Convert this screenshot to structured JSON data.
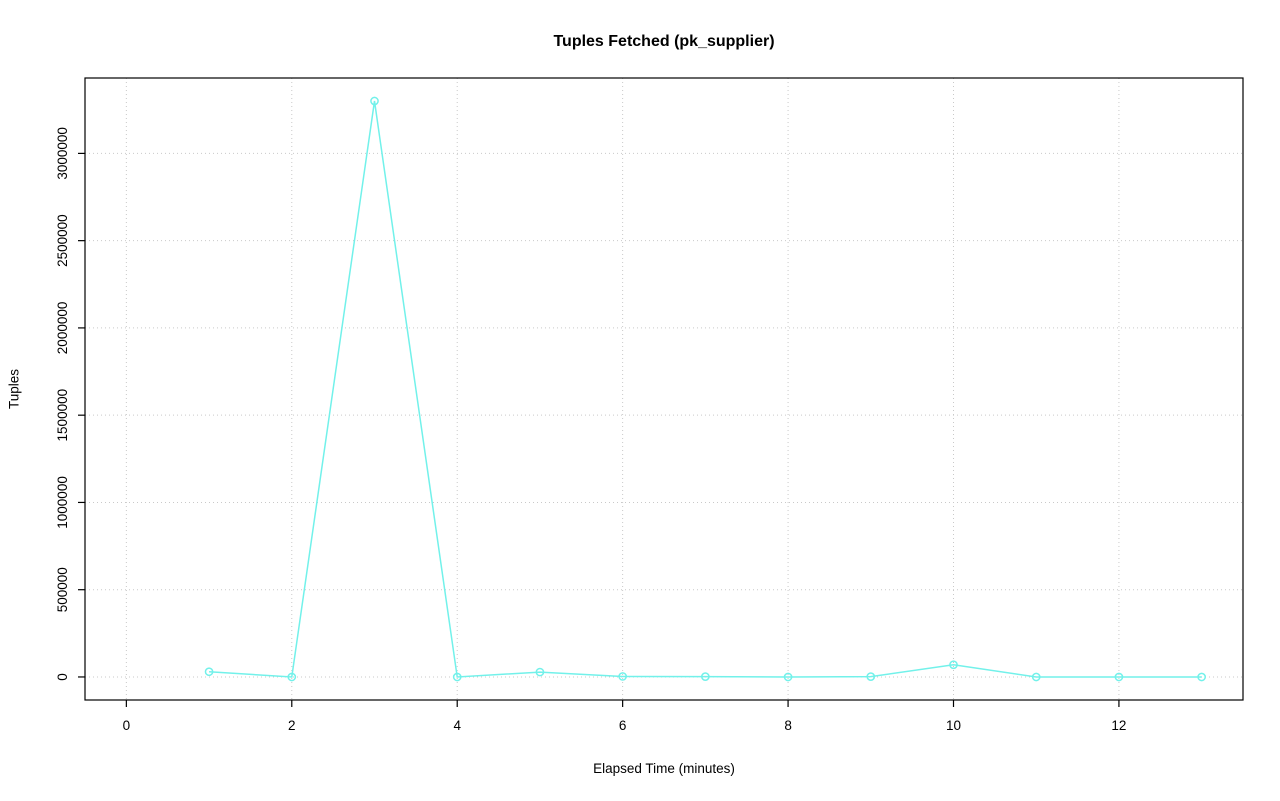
{
  "page": {
    "background": "#ffffff"
  },
  "chart_data": {
    "type": "line",
    "title": "Tuples Fetched (pk_supplier)",
    "xlabel": "Elapsed Time (minutes)",
    "ylabel": "Tuples",
    "x": [
      1,
      2,
      3,
      4,
      5,
      6,
      7,
      8,
      9,
      10,
      11,
      12,
      13
    ],
    "values": [
      30000,
      0,
      3300000,
      0,
      28000,
      3000,
      2000,
      0,
      2000,
      70000,
      0,
      0,
      0
    ],
    "x_ticks": [
      0,
      2,
      4,
      6,
      8,
      10,
      12
    ],
    "y_ticks": [
      0,
      500000,
      1000000,
      1500000,
      2000000,
      2500000,
      3000000
    ],
    "xlim": [
      -0.5,
      13.5
    ],
    "ylim": [
      -132000,
      3432000
    ],
    "grid": true,
    "grid_style": "dotted",
    "legend": "none",
    "line_color": "#72f1ea",
    "marker": "open-circle",
    "grid_color": "#c9c9c9",
    "axis_color": "#000000"
  }
}
